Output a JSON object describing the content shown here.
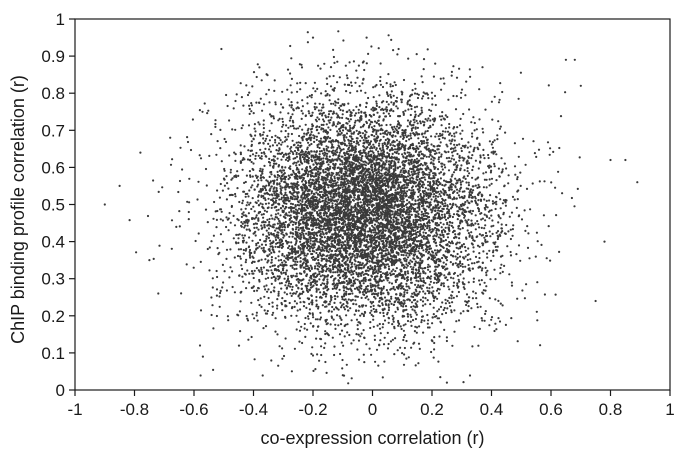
{
  "chart_data": {
    "type": "scatter",
    "title": "",
    "xlabel": "co-expression correlation (r)",
    "ylabel": "ChIP binding profile correlation (r)",
    "xlim": [
      -1,
      1
    ],
    "ylim": [
      0,
      1
    ],
    "grid": false,
    "x_ticks": [
      -1,
      -0.8,
      -0.6,
      -0.4,
      -0.2,
      0,
      0.2,
      0.4,
      0.6,
      0.8,
      1
    ],
    "y_ticks": [
      0,
      0.1,
      0.2,
      0.3,
      0.4,
      0.5,
      0.6,
      0.7,
      0.8,
      0.9,
      1
    ],
    "x_tick_labels": [
      "-1",
      "-0.8",
      "-0.6",
      "-0.4",
      "-0.2",
      "0",
      "0.2",
      "0.4",
      "0.6",
      "0.8",
      "1"
    ],
    "y_tick_labels": [
      "0",
      "0.1",
      "0.2",
      "0.3",
      "0.4",
      "0.5",
      "0.6",
      "0.7",
      "0.8",
      "0.9",
      "1"
    ],
    "marker_color": "#3a3a3a",
    "distribution": {
      "point_count": 9000,
      "x_mean": -0.03,
      "x_sd": 0.21,
      "y_mean": 0.48,
      "y_sd": 0.15
    },
    "outliers": [
      {
        "x": -0.9,
        "y": 0.5
      },
      {
        "x": -0.85,
        "y": 0.55
      },
      {
        "x": -0.78,
        "y": 0.64
      },
      {
        "x": -0.75,
        "y": 0.35
      },
      {
        "x": -0.72,
        "y": 0.26
      },
      {
        "x": -0.68,
        "y": 0.68
      },
      {
        "x": -0.58,
        "y": 0.12
      },
      {
        "x": -0.57,
        "y": 0.09
      },
      {
        "x": -0.2,
        "y": 0.95
      },
      {
        "x": -0.02,
        "y": 0.95
      },
      {
        "x": -0.1,
        "y": 0.04
      },
      {
        "x": 0.25,
        "y": 0.02
      },
      {
        "x": 0.65,
        "y": 0.89
      },
      {
        "x": 0.68,
        "y": 0.89
      },
      {
        "x": 0.7,
        "y": 0.82
      },
      {
        "x": 0.8,
        "y": 0.62
      },
      {
        "x": 0.85,
        "y": 0.62
      },
      {
        "x": 0.89,
        "y": 0.56
      },
      {
        "x": 0.75,
        "y": 0.24
      },
      {
        "x": 0.78,
        "y": 0.4
      }
    ]
  }
}
